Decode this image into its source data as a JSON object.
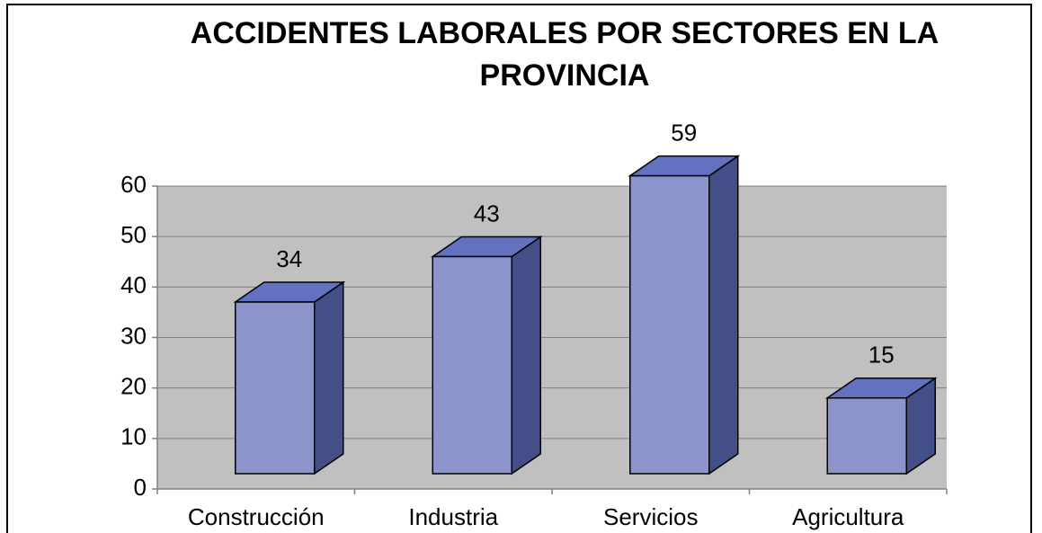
{
  "chart_data": {
    "type": "bar3d",
    "title": [
      "ACCIDENTES LABORALES POR SECTORES EN LA",
      "PROVINCIA"
    ],
    "categories": [
      "Construcción",
      "Industria",
      "Servicios",
      "Agricultura"
    ],
    "values": [
      34,
      43,
      59,
      15
    ],
    "color": "#8c94cc",
    "ylim": [
      0,
      60
    ],
    "yticks": [
      0,
      10,
      20,
      30,
      40,
      50,
      60
    ],
    "grid": true
  }
}
